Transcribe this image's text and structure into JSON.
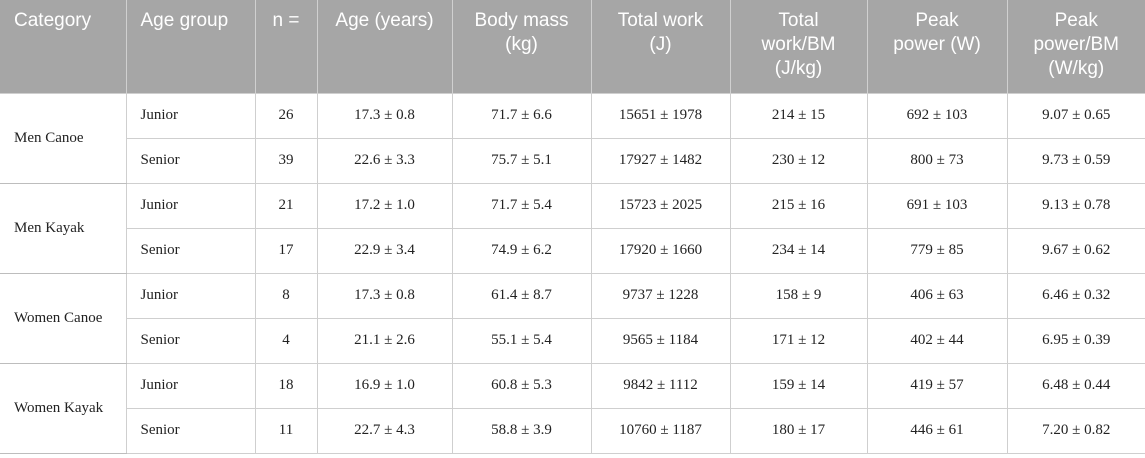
{
  "table": {
    "headers": [
      [
        "Category"
      ],
      [
        "Age group"
      ],
      [
        "n ="
      ],
      [
        "Age (years)"
      ],
      [
        "Body mass",
        "(kg)"
      ],
      [
        "Total work",
        "(J)"
      ],
      [
        "Total",
        "work/BM",
        "(J/kg)"
      ],
      [
        "Peak",
        "power (W)"
      ],
      [
        "Peak",
        "power/BM",
        "(W/kg)"
      ]
    ],
    "groups": [
      {
        "category": "Men Canoe",
        "rows": [
          [
            "Junior",
            "26",
            "17.3 ± 0.8",
            "71.7 ± 6.6",
            "15651 ± 1978",
            "214 ± 15",
            "692 ± 103",
            "9.07 ± 0.65"
          ],
          [
            "Senior",
            "39",
            "22.6 ± 3.3",
            "75.7 ± 5.1",
            "17927 ± 1482",
            "230 ± 12",
            "800 ± 73",
            "9.73 ± 0.59"
          ]
        ]
      },
      {
        "category": "Men Kayak",
        "rows": [
          [
            "Junior",
            "21",
            "17.2 ± 1.0",
            "71.7 ± 5.4",
            "15723 ± 2025",
            "215 ± 16",
            "691 ± 103",
            "9.13 ± 0.78"
          ],
          [
            "Senior",
            "17",
            "22.9 ± 3.4",
            "74.9 ± 6.2",
            "17920 ± 1660",
            "234 ± 14",
            "779 ± 85",
            "9.67 ± 0.62"
          ]
        ]
      },
      {
        "category": "Women Canoe",
        "rows": [
          [
            "Junior",
            "8",
            "17.3 ± 0.8",
            "61.4 ± 8.7",
            "9737 ± 1228",
            "158 ± 9",
            "406 ± 63",
            "6.46 ± 0.32"
          ],
          [
            "Senior",
            "4",
            "21.1 ± 2.6",
            "55.1 ± 5.4",
            "9565 ± 1184",
            "171 ± 12",
            "402 ± 44",
            "6.95 ± 0.39"
          ]
        ]
      },
      {
        "category": "Women Kayak",
        "rows": [
          [
            "Junior",
            "18",
            "16.9 ± 1.0",
            "60.8 ± 5.3",
            "9842 ± 1112",
            "159 ± 14",
            "419 ± 57",
            "6.48 ± 0.44"
          ],
          [
            "Senior",
            "11",
            "22.7 ± 4.3",
            "58.8 ± 3.9",
            "10760 ± 1187",
            "180 ± 17",
            "446 ± 61",
            "7.20 ± 0.82"
          ]
        ]
      }
    ]
  }
}
